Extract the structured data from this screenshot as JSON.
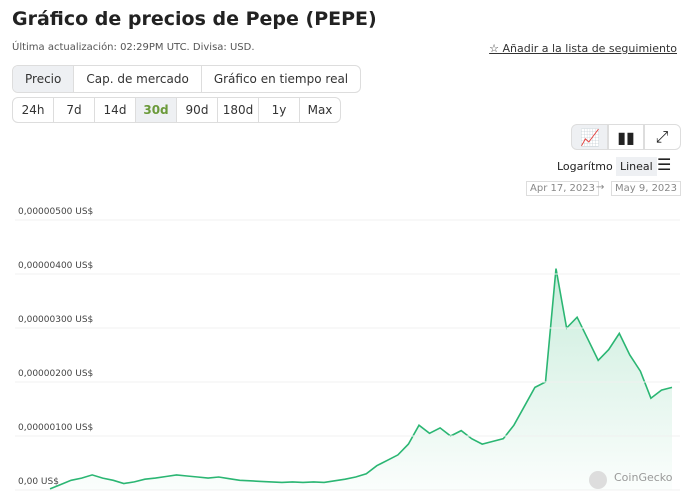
{
  "header": {
    "title": "Gráfico de precios de Pepe (PEPE)",
    "subtitle": "Última actualización: 02:29PM UTC. Divisa: USD.",
    "watchlist": "Añadir a la lista de seguimiento"
  },
  "tabs": [
    "Precio",
    "Cap. de mercado",
    "Gráfico en tiempo real"
  ],
  "ranges": [
    "24h",
    "7d",
    "14d",
    "30d",
    "90d",
    "180d",
    "1y",
    "Max"
  ],
  "scale_options": [
    "Logarítmo",
    "Lineal"
  ],
  "date_range": {
    "from": "Apr 17, 2023",
    "arrow": "→",
    "to": "May 9, 2023"
  },
  "watermark": "CoinGecko",
  "chart_data": {
    "type": "line",
    "color": "#2bb673",
    "ylim": [
      0,
      5e-06
    ],
    "yticks": [
      {
        "value": 0,
        "label": "0,00 US$"
      },
      {
        "value": 1e-06,
        "label": "0,00000100 US$"
      },
      {
        "value": 2e-06,
        "label": "0,00000200 US$"
      },
      {
        "value": 3e-06,
        "label": "0,00000300 US$"
      },
      {
        "value": 4e-06,
        "label": "0,00000400 US$"
      },
      {
        "value": 5e-06,
        "label": "0,00000500 US$"
      }
    ],
    "grid": true,
    "values": [
      2e-08,
      1e-07,
      1.8e-07,
      2.2e-07,
      2.8e-07,
      2.2e-07,
      1.8e-07,
      1.2e-07,
      1.5e-07,
      2e-07,
      2.2e-07,
      2.5e-07,
      2.8e-07,
      2.6e-07,
      2.4e-07,
      2.2e-07,
      2.4e-07,
      2.1e-07,
      1.8e-07,
      1.7e-07,
      1.6e-07,
      1.5e-07,
      1.4e-07,
      1.5e-07,
      1.4e-07,
      1.5e-07,
      1.4e-07,
      1.7e-07,
      2e-07,
      2.4e-07,
      3e-07,
      4.5e-07,
      5.5e-07,
      6.5e-07,
      8.5e-07,
      1.2e-06,
      1.05e-06,
      1.15e-06,
      1e-06,
      1.1e-06,
      9.5e-07,
      8.5e-07,
      9e-07,
      9.5e-07,
      1.2e-06,
      1.55e-06,
      1.9e-06,
      2e-06,
      4.1e-06,
      3e-06,
      3.2e-06,
      2.8e-06,
      2.4e-06,
      2.6e-06,
      2.9e-06,
      2.5e-06,
      2.2e-06,
      1.7e-06,
      1.85e-06,
      1.9e-06
    ]
  }
}
